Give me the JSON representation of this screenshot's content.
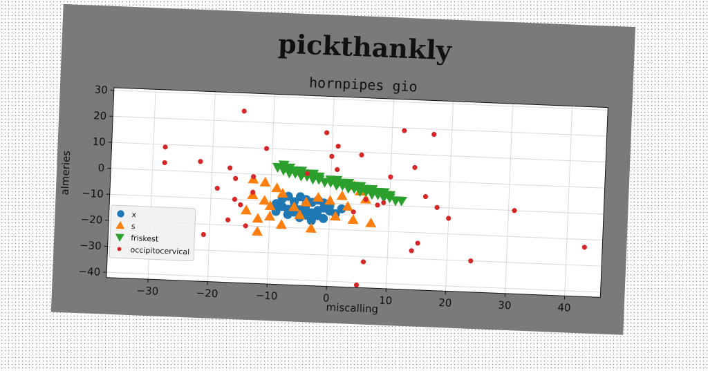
{
  "chart_data": {
    "type": "scatter",
    "title": "pickthankly",
    "subtitle": "hornpipes gio",
    "xlabel": "miscalling",
    "ylabel": "almeries",
    "xlim": [
      -37,
      46
    ],
    "ylim": [
      -42,
      31
    ],
    "xticks": [
      -30,
      -20,
      -10,
      0,
      10,
      20,
      30,
      40
    ],
    "yticks": [
      30,
      20,
      10,
      0,
      -10,
      -20,
      -30,
      -40
    ],
    "grid": true,
    "legend_position": "lower-left",
    "series": [
      {
        "name": "x",
        "marker": "circle",
        "color": "#1f77b4",
        "points": [
          [
            -9,
            -11
          ],
          [
            -8,
            -12
          ],
          [
            -7,
            -13
          ],
          [
            -6,
            -14
          ],
          [
            -5,
            -13
          ],
          [
            -4,
            -15
          ],
          [
            -3,
            -14
          ],
          [
            -2,
            -13
          ],
          [
            -1,
            -12
          ],
          [
            0,
            -13
          ],
          [
            1,
            -14
          ],
          [
            -8,
            -9
          ],
          [
            -6,
            -10
          ],
          [
            -5,
            -8
          ],
          [
            -4,
            -11
          ],
          [
            -3,
            -10
          ],
          [
            -2,
            -9
          ],
          [
            -1,
            -10
          ],
          [
            0,
            -11
          ],
          [
            -7,
            -15
          ],
          [
            -5,
            -16
          ],
          [
            -3,
            -17
          ],
          [
            -1,
            -16
          ],
          [
            2,
            -12
          ],
          [
            -6,
            -12
          ],
          [
            -4,
            -13
          ],
          [
            -2,
            -15
          ],
          [
            -9,
            -14
          ],
          [
            -7,
            -8
          ],
          [
            -4,
            -9
          ]
        ]
      },
      {
        "name": "s",
        "marker": "triangle-up",
        "color": "#ff7f0e",
        "points": [
          [
            -13,
            -2
          ],
          [
            -11,
            -3
          ],
          [
            -9,
            -5
          ],
          [
            -13,
            -8
          ],
          [
            -11,
            -10
          ],
          [
            -14,
            -14
          ],
          [
            -12,
            -17
          ],
          [
            -10,
            -16
          ],
          [
            -8,
            -19
          ],
          [
            -12,
            -22
          ],
          [
            -6,
            -12
          ],
          [
            -4,
            -10
          ],
          [
            -2,
            -8
          ],
          [
            0,
            -9
          ],
          [
            2,
            -7
          ],
          [
            3,
            -11
          ],
          [
            5,
            -5
          ],
          [
            4,
            -3
          ],
          [
            6,
            -8
          ],
          [
            4,
            -16
          ],
          [
            7,
            -17
          ],
          [
            -3,
            -20
          ],
          [
            -5,
            -15
          ],
          [
            1,
            -15
          ],
          [
            -8,
            -7
          ],
          [
            -10,
            -12
          ]
        ]
      },
      {
        "name": "friskest",
        "marker": "triangle-down",
        "color": "#2ca02c",
        "points": [
          [
            -9,
            3
          ],
          [
            -8,
            2
          ],
          [
            -7,
            1
          ],
          [
            -6,
            1
          ],
          [
            -5,
            0
          ],
          [
            -4,
            0
          ],
          [
            -3,
            -1
          ],
          [
            -2,
            -1
          ],
          [
            -1,
            -2
          ],
          [
            0,
            -2
          ],
          [
            1,
            -3
          ],
          [
            2,
            -3
          ],
          [
            3,
            -4
          ],
          [
            4,
            -4
          ],
          [
            5,
            -5
          ],
          [
            6,
            -5
          ],
          [
            7,
            -6
          ],
          [
            8,
            -6
          ],
          [
            9,
            -7
          ],
          [
            10,
            -7
          ],
          [
            11,
            -8
          ],
          [
            12,
            -8
          ],
          [
            -8,
            4
          ],
          [
            -6,
            2
          ],
          [
            -4,
            1
          ],
          [
            -2,
            0
          ],
          [
            0,
            -1
          ],
          [
            2,
            -2
          ],
          [
            4,
            -3
          ],
          [
            6,
            -4
          ],
          [
            8,
            -5
          ],
          [
            10,
            -6
          ],
          [
            -7,
            3
          ],
          [
            -3,
            1
          ],
          [
            1,
            -1
          ],
          [
            5,
            -3
          ],
          [
            9,
            -5
          ],
          [
            -5,
            2
          ],
          [
            3,
            -2
          ],
          [
            7,
            -4
          ]
        ]
      },
      {
        "name": "occipitocervical",
        "marker": "circle-small",
        "color": "#d62728",
        "points": [
          [
            -15,
            24
          ],
          [
            -28,
            9
          ],
          [
            -28,
            3
          ],
          [
            -22,
            4
          ],
          [
            -17,
            2
          ],
          [
            -16,
            -2
          ],
          [
            -19,
            -6
          ],
          [
            -16,
            -10
          ],
          [
            -17,
            -18
          ],
          [
            -14,
            -20
          ],
          [
            -13,
            -7
          ],
          [
            -15,
            -12
          ],
          [
            -21,
            -24
          ],
          [
            -11,
            10
          ],
          [
            -13,
            -1
          ],
          [
            -4,
            1
          ],
          [
            -1,
            17
          ],
          [
            1,
            12
          ],
          [
            0,
            8
          ],
          [
            1,
            3
          ],
          [
            5,
            9
          ],
          [
            10,
            1
          ],
          [
            12,
            19
          ],
          [
            17,
            18
          ],
          [
            14,
            5
          ],
          [
            16,
            -6
          ],
          [
            18,
            -10
          ],
          [
            20,
            -14
          ],
          [
            14,
            -27
          ],
          [
            15,
            -24
          ],
          [
            6,
            -32
          ],
          [
            5,
            -41
          ],
          [
            24,
            -30
          ],
          [
            31,
            -10
          ],
          [
            43,
            -23
          ],
          [
            4,
            -13
          ],
          [
            6,
            -8
          ],
          [
            9,
            -9
          ],
          [
            8,
            -10
          ]
        ]
      }
    ]
  }
}
